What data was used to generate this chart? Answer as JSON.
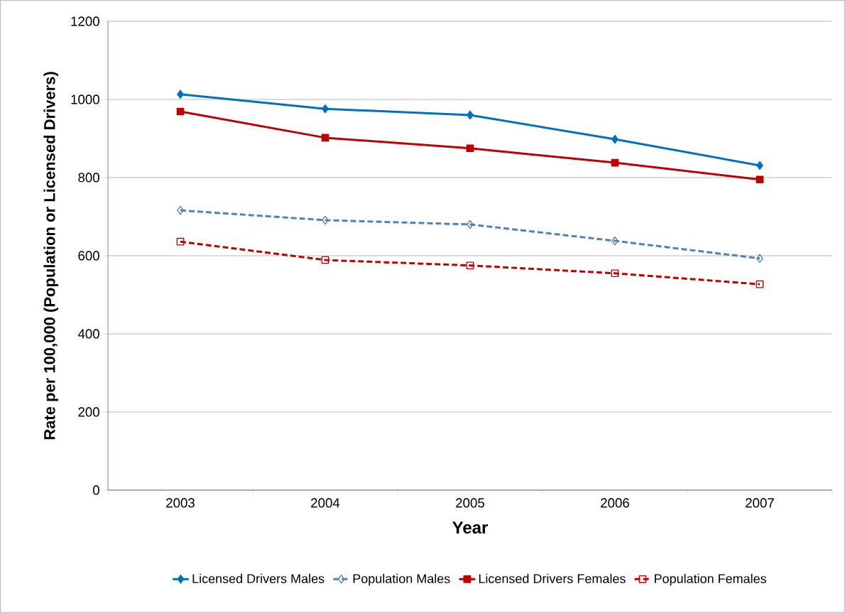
{
  "chart_data": {
    "type": "line",
    "xlabel": "Year",
    "ylabel": "Rate per 100,000 (Population or Licensed Drivers)",
    "categories": [
      "2003",
      "2004",
      "2005",
      "2006",
      "2007"
    ],
    "ylim": [
      0,
      1200
    ],
    "yticks": [
      0,
      200,
      400,
      600,
      800,
      1000,
      1200
    ],
    "grid": "y",
    "legend": "bottom",
    "series": [
      {
        "name": "Licensed Drivers Males",
        "color": "#0070c0",
        "marker": "diamond",
        "line_style": "solid",
        "values": [
          1013,
          976,
          960,
          898,
          831
        ]
      },
      {
        "name": "Population Males",
        "color": "#4f81bd",
        "marker": "diamond",
        "line_style": "dashed",
        "values": [
          716,
          691,
          680,
          638,
          593
        ]
      },
      {
        "name": "Licensed Drivers Females",
        "color": "#c00000",
        "marker": "square",
        "line_style": "solid",
        "values": [
          969,
          902,
          875,
          838,
          795
        ]
      },
      {
        "name": "Population Females",
        "color": "#c00000",
        "marker": "square",
        "line_style": "dashed",
        "values": [
          636,
          589,
          575,
          555,
          527
        ]
      }
    ]
  }
}
